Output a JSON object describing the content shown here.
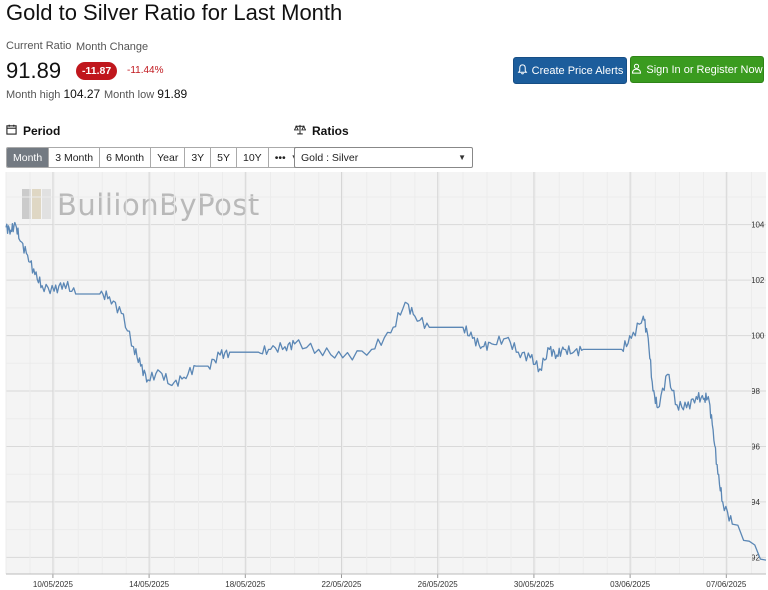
{
  "page": {
    "title": "Gold to Silver Ratio for Last Month",
    "current_ratio_label": "Current Ratio",
    "current_ratio_value": "91.89",
    "month_change_label": "Month Change",
    "month_change_value": "-11.87",
    "month_change_pct": "-11.44%",
    "month_high_label": "Month high",
    "month_high_value": "104.27",
    "month_low_label": "Month low",
    "month_low_value": "91.89"
  },
  "actions": {
    "alert_label": "Create Price Alerts",
    "signin_label": "Sign In or Register Now"
  },
  "period": {
    "heading": "Period",
    "buttons": [
      "Month",
      "3 Month",
      "6 Month",
      "Year",
      "3Y",
      "5Y",
      "10Y",
      "•••"
    ],
    "active": "Month"
  },
  "ratios": {
    "heading": "Ratios",
    "selected": "Gold : Silver"
  },
  "watermark": "BullionByPost",
  "colors": {
    "line": "#5b87b5",
    "alert_button": "#1c5d9c",
    "signin_button": "#3a9b1f",
    "negative": "#c0171d",
    "active_period": "#737a82"
  },
  "icons": {
    "period": "calendar-icon",
    "ratios": "balance-scale-icon",
    "alert": "bell-icon",
    "signin": "user-icon"
  },
  "chart_data": {
    "type": "line",
    "x_ticks": [
      "10/05/2025",
      "14/05/2025",
      "18/05/2025",
      "22/05/2025",
      "26/05/2025",
      "30/05/2025",
      "03/06/2025",
      "07/06/2025"
    ],
    "y_ticks": [
      92,
      94,
      96,
      98,
      100,
      102,
      104
    ],
    "ylim": [
      91.4,
      105.9
    ],
    "xlim": [
      0,
      31.6
    ],
    "y_axis_side": "right",
    "grid": true,
    "series": [
      {
        "x": [
          0,
          0.2,
          0.4,
          0.6,
          0.9,
          1.2,
          1.5,
          2.0,
          2.4,
          2.9,
          3.3,
          3.6,
          3.9,
          4.3,
          4.8,
          5.3,
          5.6,
          5.9,
          6.4,
          6.9,
          7.4,
          7.9,
          8.4,
          8.9,
          9.3,
          9.6,
          10.0,
          10.5,
          11.0,
          11.6,
          12.0,
          13.0,
          14.0,
          15.2,
          16.0,
          16.6,
          17.0,
          17.6,
          18.1,
          18.6,
          19.0,
          19.4,
          19.8,
          20.2,
          20.8,
          21.3,
          21.8,
          22.2,
          22.6,
          22.9,
          23.2,
          23.6,
          24.0,
          24.3,
          24.6,
          25.0,
          25.6,
          26.0,
          26.5,
          26.7,
          26.9,
          27.1,
          27.5,
          27.9,
          28.3,
          28.7,
          29.0,
          29.2,
          29.4,
          29.6,
          29.8,
          30.2,
          31.6
        ],
        "y": [
          103.9,
          103.8,
          104.0,
          103.4,
          102.9,
          102.2,
          101.8,
          101.6,
          101.9,
          101.5,
          101.5,
          101.5,
          101.5,
          101.4,
          100.8,
          99.6,
          98.9,
          98.4,
          98.7,
          98.2,
          98.5,
          98.9,
          98.9,
          99.3,
          99.4,
          99.4,
          99.4,
          99.4,
          99.5,
          99.6,
          99.7,
          99.5,
          99.2,
          99.5,
          100.1,
          101.2,
          100.7,
          100.3,
          100.3,
          100.3,
          100.3,
          99.9,
          99.6,
          99.7,
          99.9,
          99.4,
          99.2,
          98.8,
          99.5,
          99.3,
          99.5,
          99.4,
          99.5,
          99.5,
          99.5,
          99.5,
          99.5,
          99.9,
          100.7,
          99.9,
          98.0,
          97.4,
          98.6,
          97.5,
          97.4,
          97.8,
          97.7,
          97.8,
          96.6,
          95.0,
          94.0,
          93.2,
          91.9
        ]
      }
    ]
  }
}
